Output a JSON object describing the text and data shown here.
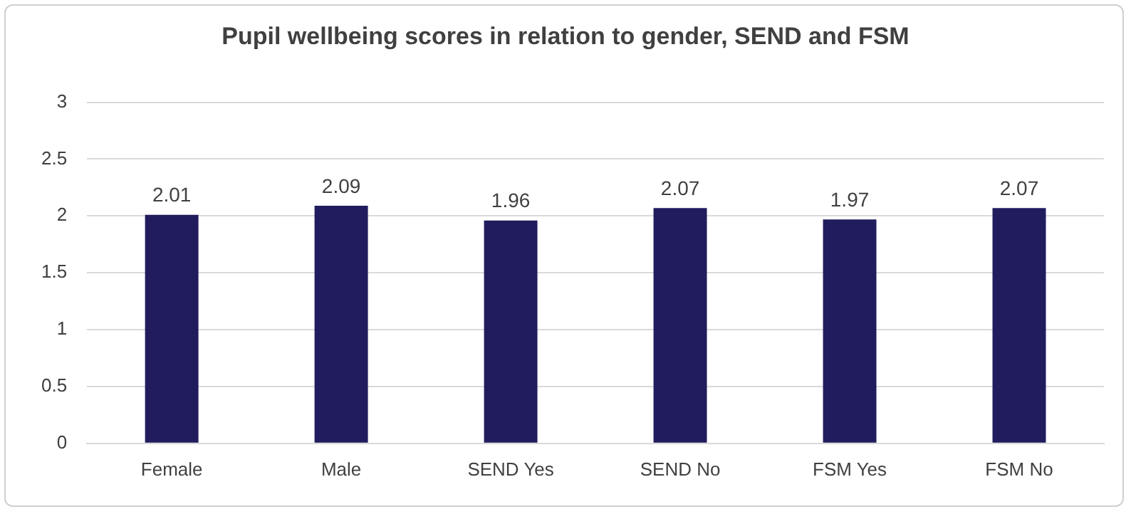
{
  "chart_data": {
    "type": "bar",
    "title": "Pupil wellbeing scores in relation to gender, SEND and FSM",
    "categories": [
      "Female",
      "Male",
      "SEND Yes",
      "SEND No",
      "FSM Yes",
      "FSM No"
    ],
    "values": [
      2.01,
      2.09,
      1.96,
      2.07,
      1.97,
      2.07
    ],
    "color": "#201c5e",
    "ylim": [
      0,
      3
    ],
    "yticks": [
      0,
      0.5,
      1,
      1.5,
      2,
      2.5,
      3
    ],
    "grid": "y",
    "data_labels": true,
    "legend": false
  }
}
